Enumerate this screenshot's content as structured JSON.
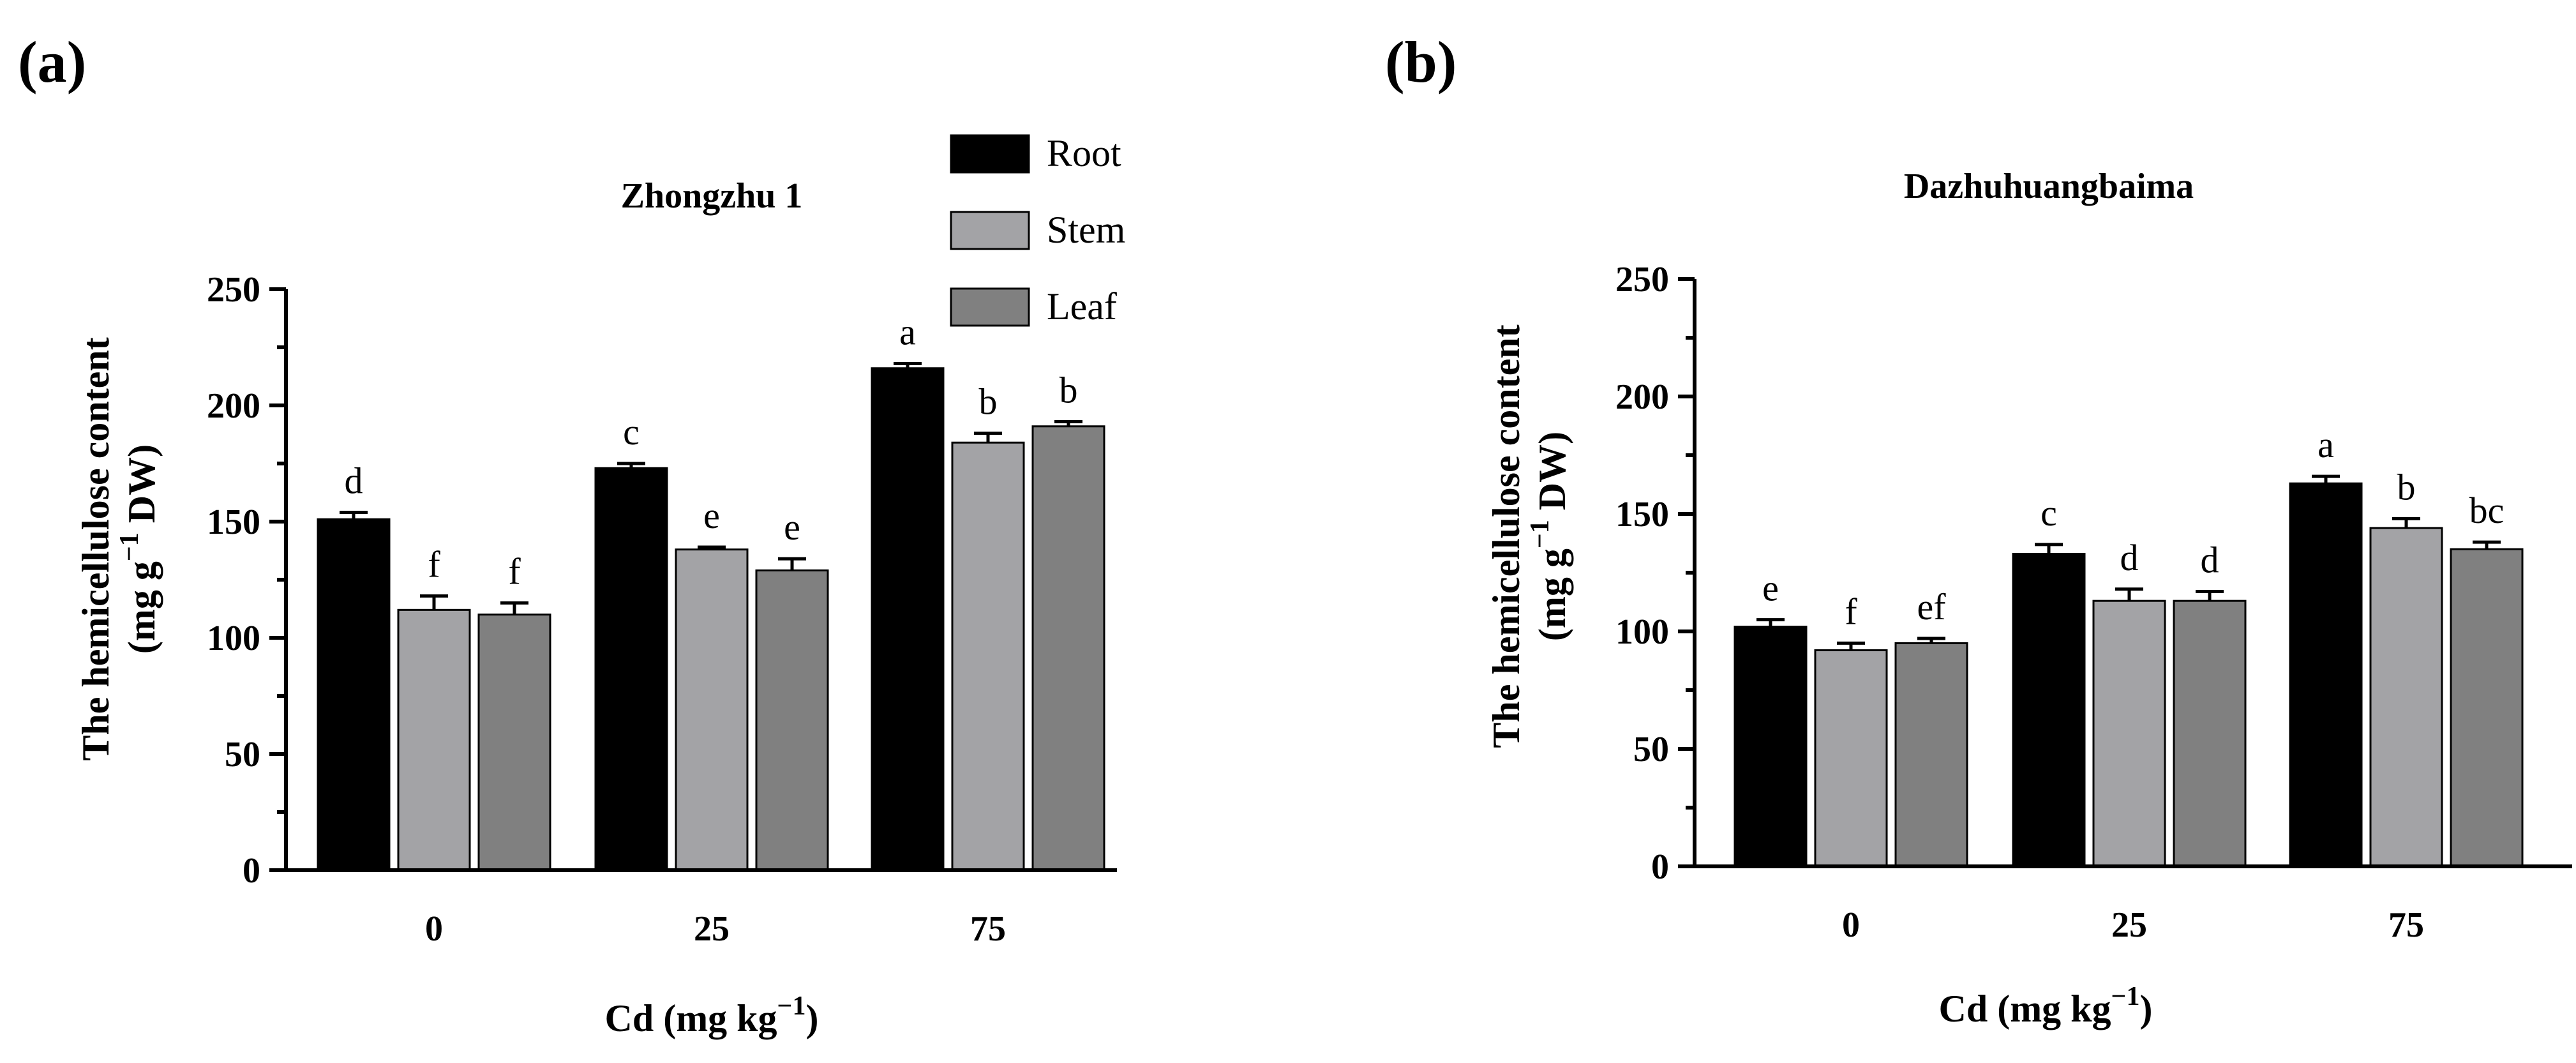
{
  "legend": [
    {
      "label": "Root",
      "color": "#000000"
    },
    {
      "label": "Stem",
      "color": "#a3a3a6"
    },
    {
      "label": "Leaf",
      "color": "#808080"
    }
  ],
  "chart_data": [
    {
      "panel": "(a)",
      "type": "bar",
      "title": "Zhongzhu 1",
      "xlabel": "Cd (mg kg",
      "xlabel_sup": "−1",
      "xlabel_end": ")",
      "ylabel_line1": "The hemicellulose content",
      "ylabel_line2": "(mg g",
      "ylabel_sup": "−1",
      "ylabel_end": " DW)",
      "ylim": [
        0,
        250
      ],
      "yticks": [
        0,
        50,
        100,
        150,
        200,
        250
      ],
      "categories": [
        "0",
        "25",
        "75"
      ],
      "series": [
        {
          "name": "Root",
          "values": [
            151,
            173,
            216
          ],
          "errors": [
            3,
            2,
            2
          ],
          "letters": [
            "d",
            "c",
            "a"
          ]
        },
        {
          "name": "Stem",
          "values": [
            112,
            138,
            184
          ],
          "errors": [
            6,
            1,
            4
          ],
          "letters": [
            "f",
            "e",
            "b"
          ]
        },
        {
          "name": "Leaf",
          "values": [
            110,
            129,
            191
          ],
          "errors": [
            5,
            5,
            2
          ],
          "letters": [
            "f",
            "e",
            "b"
          ]
        }
      ]
    },
    {
      "panel": "(b)",
      "type": "bar",
      "title": "Dazhuhuangbaima",
      "xlabel": "Cd (mg kg",
      "xlabel_sup": "−1",
      "xlabel_end": ")",
      "ylabel_line1": "The hemicellulose content",
      "ylabel_line2": "(mg g",
      "ylabel_sup": "−1",
      "ylabel_end": " DW)",
      "ylim": [
        0,
        250
      ],
      "yticks": [
        0,
        50,
        100,
        150,
        200,
        250
      ],
      "categories": [
        "0",
        "25",
        "75"
      ],
      "series": [
        {
          "name": "Root",
          "values": [
            102,
            133,
            163
          ],
          "errors": [
            3,
            4,
            3
          ],
          "letters": [
            "e",
            "c",
            "a"
          ]
        },
        {
          "name": "Stem",
          "values": [
            92,
            113,
            144
          ],
          "errors": [
            3,
            5,
            4
          ],
          "letters": [
            "f",
            "d",
            "b"
          ]
        },
        {
          "name": "Leaf",
          "values": [
            95,
            113,
            135
          ],
          "errors": [
            2,
            4,
            3
          ],
          "letters": [
            "ef",
            "d",
            "bc"
          ]
        }
      ]
    }
  ]
}
